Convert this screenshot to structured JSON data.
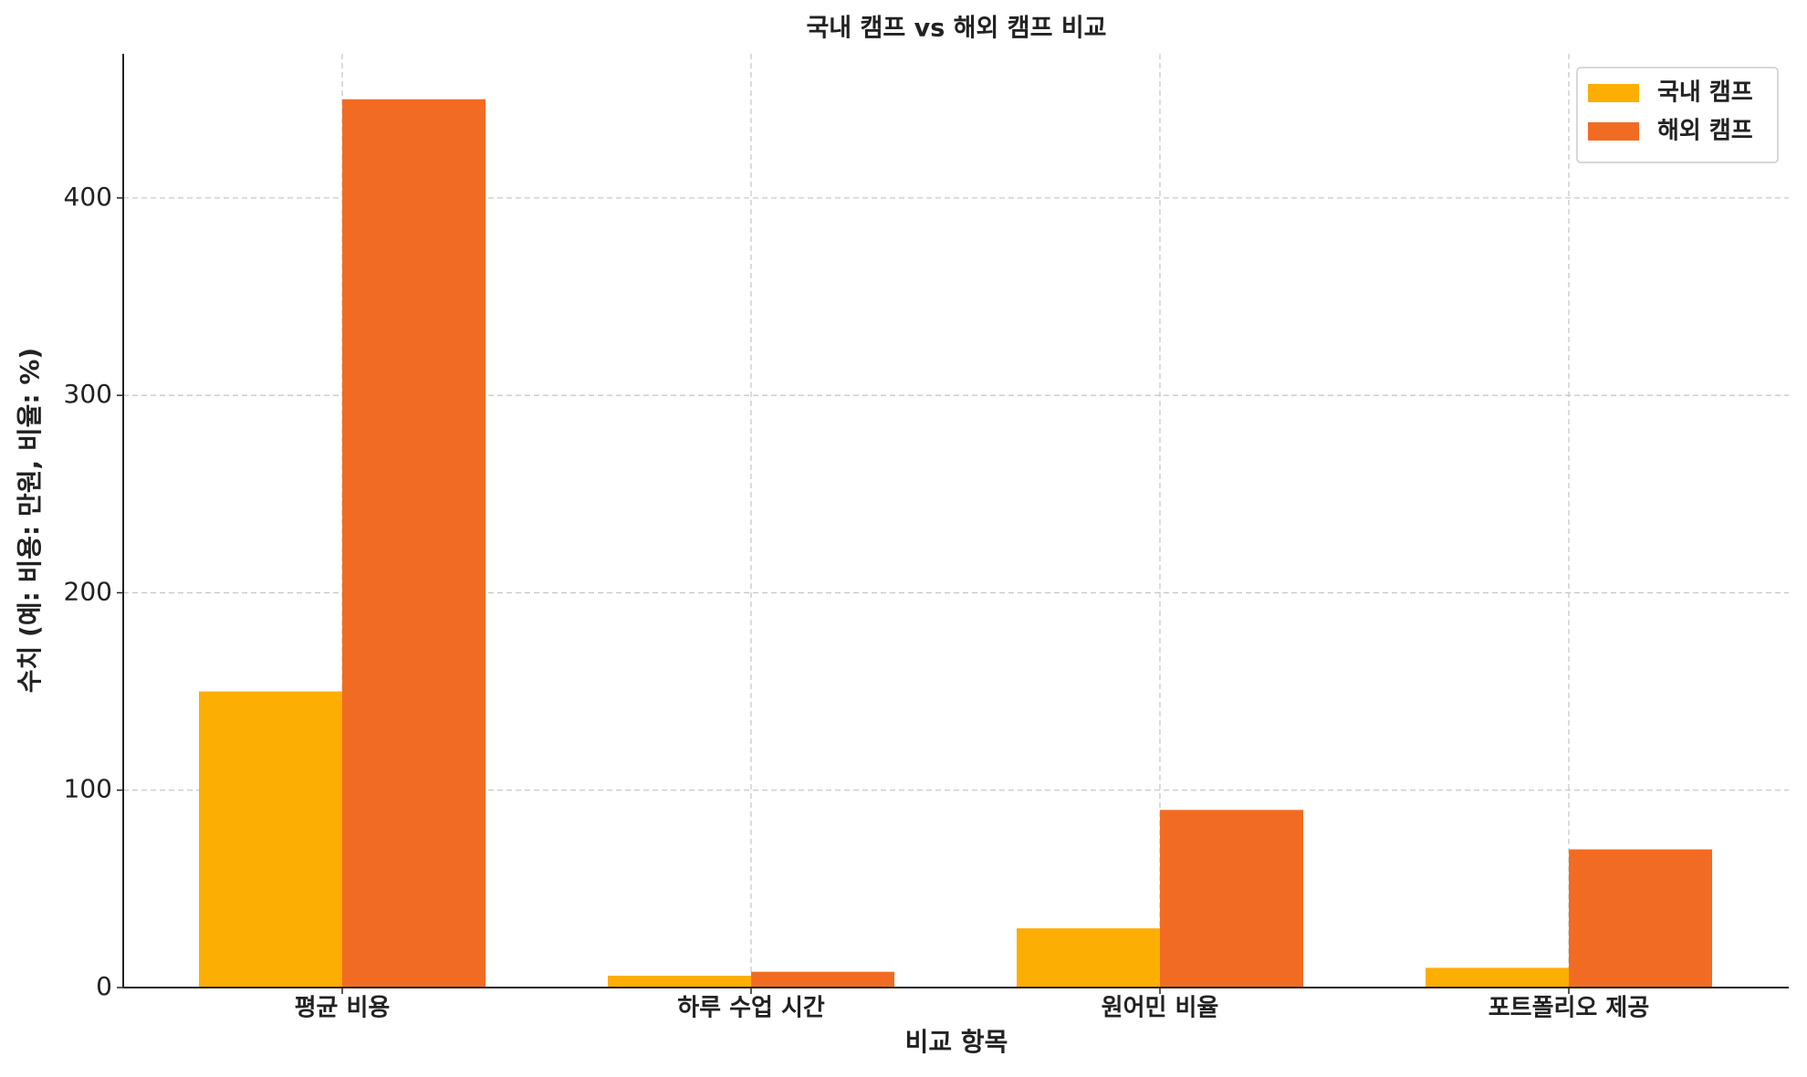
{
  "chart_data": {
    "type": "bar",
    "title": "국내 캠프 vs 해외 캠프 비교",
    "x_label": "비교 항목",
    "y_label": "수치 (예: 비용: 만원, 비율: %)",
    "categories": [
      "평균 비용",
      "하루 수업 시간",
      "원어민 비율",
      "포트폴리오 제공"
    ],
    "series": [
      {
        "name": "국내 캠프",
        "color": "#fdae03",
        "values": [
          150,
          6,
          30,
          10
        ]
      },
      {
        "name": "해외 캠프",
        "color": "#f26b23",
        "values": [
          450,
          8,
          90,
          70
        ]
      }
    ],
    "ylim": [
      0,
      473
    ],
    "yticks": [
      0,
      100,
      200,
      300,
      400
    ],
    "grid": true,
    "legend": "upper right"
  }
}
